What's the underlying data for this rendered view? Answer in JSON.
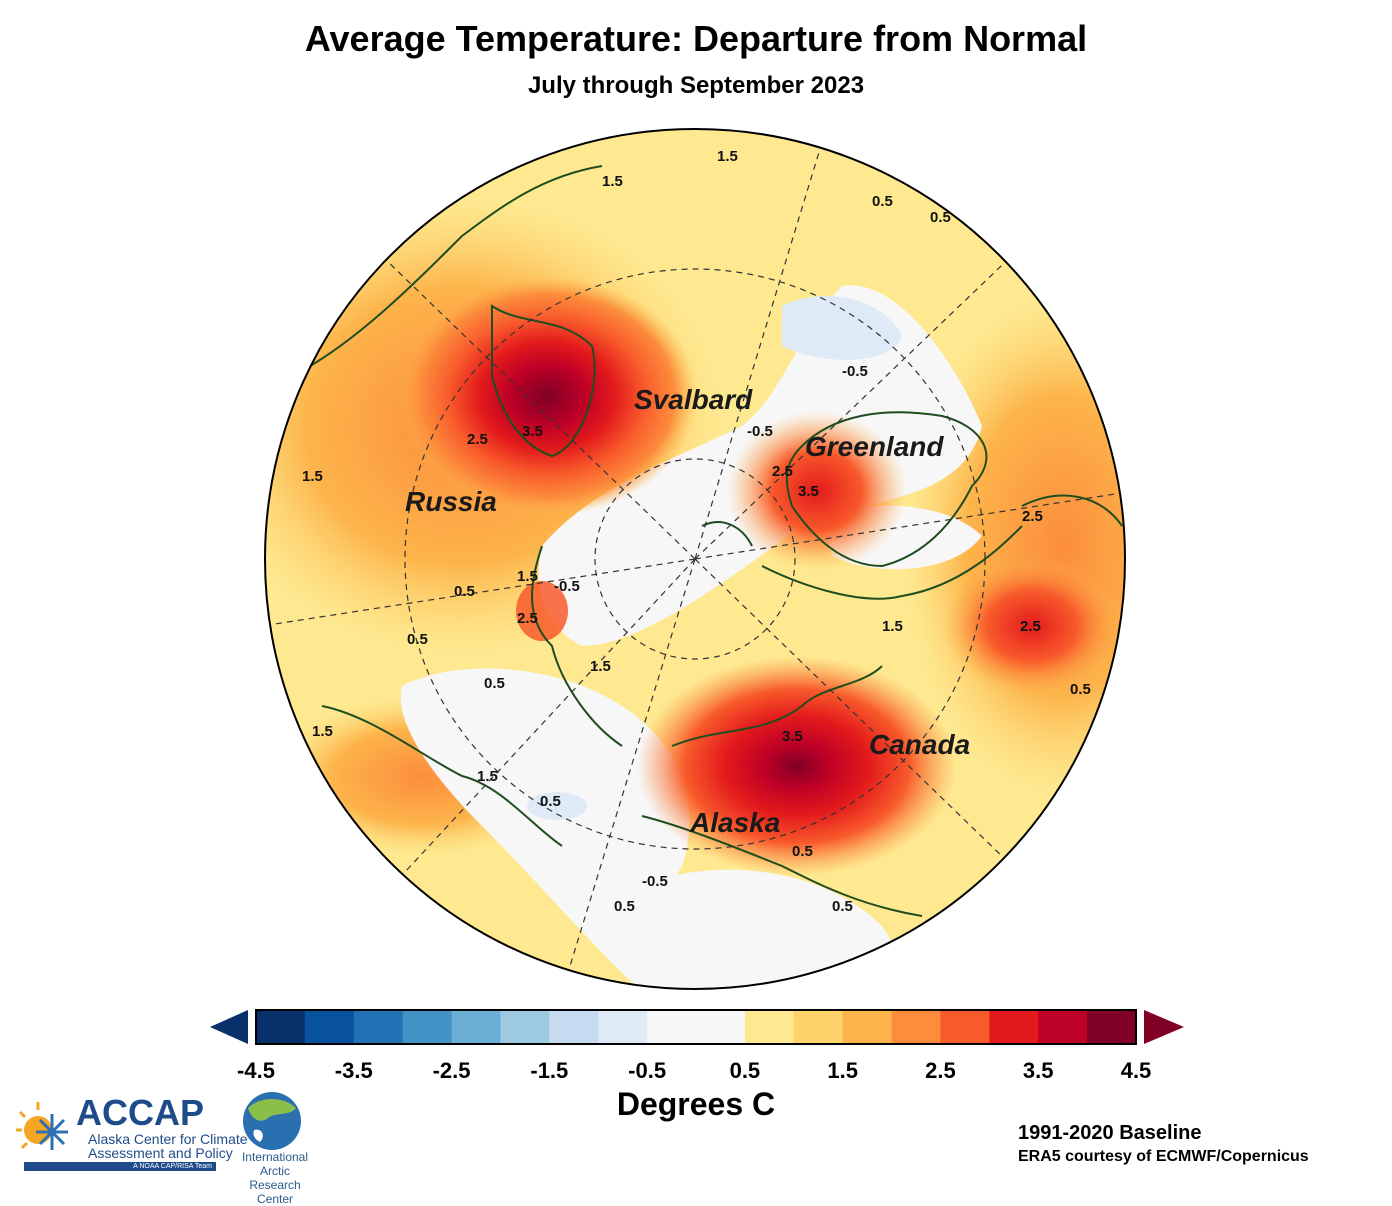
{
  "title": "Average Temperature: Departure from Normal",
  "subtitle": "July through September 2023",
  "regions": [
    {
      "name": "Russia"
    },
    {
      "name": "Svalbard"
    },
    {
      "name": "Greenland"
    },
    {
      "name": "Canada"
    },
    {
      "name": "Alaska"
    }
  ],
  "contour_labels": [
    "0.5",
    "1.5",
    "2.5",
    "3.5",
    "-0.5"
  ],
  "colorbar": {
    "title": "Degrees C",
    "ticks": [
      "-4.5",
      "-3.5",
      "-2.5",
      "-1.5",
      "-0.5",
      "0.5",
      "1.5",
      "2.5",
      "3.5",
      "4.5"
    ],
    "colors": [
      "#08306b",
      "#08519c",
      "#2171b5",
      "#4292c6",
      "#6baed6",
      "#9ecae1",
      "#c6dbef",
      "#deebf7",
      "#f7f7f7",
      "#f7f7f7",
      "#fee991",
      "#fdd36c",
      "#fdb44b",
      "#fc8d3c",
      "#f85a2b",
      "#e31a1c",
      "#bd0026",
      "#800026"
    ],
    "under_color": "#08306b",
    "over_color": "#800026"
  },
  "baseline": "1991-2020 Baseline",
  "credit": "ERA5 courtesy of ECMWF/Copernicus",
  "logos": {
    "accap_name": "ACCAP",
    "accap_line1": "Alaska Center for Climate",
    "accap_line2": "Assessment and Policy",
    "accap_bar": "A NOAA CAP/RISA Team",
    "iarc_line1": "International Arctic",
    "iarc_line2": "Research Center"
  }
}
